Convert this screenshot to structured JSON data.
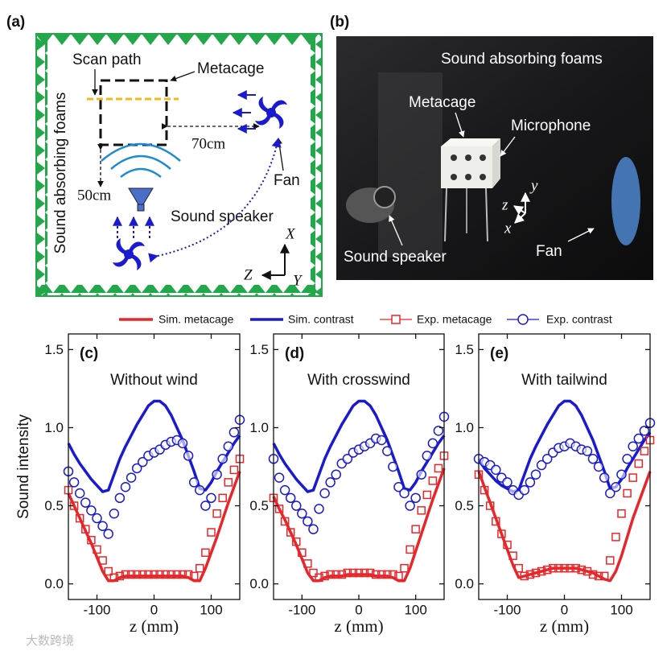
{
  "panel_a": {
    "label": "(a)",
    "scan_path": "Scan path",
    "metacage": "Metacage",
    "distance_horizontal": "70cm",
    "fan": "Fan",
    "distance_vertical": "50cm",
    "sound_speaker": "Sound speaker",
    "foams": "Sound absorbing foams",
    "axis_x": "X",
    "axis_z": "Z",
    "axis_y": "Y"
  },
  "panel_b": {
    "label": "(b)",
    "foams": "Sound absorbing foams",
    "metacage": "Metacage",
    "microphone": "Microphone",
    "axis_y": "y",
    "axis_z": "z",
    "axis_x": "x",
    "sound_speaker": "Sound speaker",
    "fan": "Fan"
  },
  "watermark": "大数跨境",
  "chart_data": [
    {
      "type": "line",
      "title": "(c)",
      "subtitle": "Without wind",
      "xlabel": "z (mm)",
      "ylabel": "Sound intensity",
      "x": [
        -150,
        -140,
        -130,
        -120,
        -110,
        -100,
        -90,
        -80,
        -70,
        -60,
        -50,
        -40,
        -30,
        -20,
        -10,
        0,
        10,
        20,
        30,
        40,
        50,
        60,
        70,
        80,
        90,
        100,
        110,
        120,
        130,
        140,
        150
      ],
      "series": [
        {
          "name": "Sim. metacage",
          "color": "#e8262a",
          "style": "line",
          "values": [
            0.58,
            0.5,
            0.42,
            0.34,
            0.26,
            0.17,
            0.08,
            0.02,
            0.02,
            0.04,
            0.05,
            0.05,
            0.05,
            0.05,
            0.05,
            0.05,
            0.05,
            0.05,
            0.05,
            0.05,
            0.05,
            0.04,
            0.02,
            0.02,
            0.1,
            0.2,
            0.3,
            0.41,
            0.52,
            0.62,
            0.72
          ]
        },
        {
          "name": "Sim. contrast",
          "color": "#1a1ad0",
          "style": "line",
          "values": [
            0.9,
            0.83,
            0.77,
            0.72,
            0.67,
            0.63,
            0.59,
            0.6,
            0.7,
            0.8,
            0.88,
            0.95,
            1.02,
            1.08,
            1.14,
            1.17,
            1.17,
            1.14,
            1.08,
            1.0,
            0.92,
            0.82,
            0.72,
            0.61,
            0.6,
            0.65,
            0.72,
            0.78,
            0.84,
            0.9,
            0.95
          ]
        },
        {
          "name": "Exp. metacage",
          "color": "#e8262a",
          "style": "square",
          "values": [
            0.6,
            0.5,
            0.42,
            0.35,
            0.28,
            0.22,
            0.15,
            0.08,
            0.04,
            0.05,
            0.06,
            0.06,
            0.06,
            0.06,
            0.06,
            0.06,
            0.06,
            0.06,
            0.06,
            0.06,
            0.06,
            0.06,
            0.05,
            0.1,
            0.2,
            0.33,
            0.45,
            0.55,
            0.65,
            0.73,
            0.8
          ]
        },
        {
          "name": "Exp. contrast",
          "color": "#1a1ad0",
          "style": "circle",
          "values": [
            0.72,
            0.65,
            0.58,
            0.52,
            0.47,
            0.42,
            0.37,
            0.32,
            0.45,
            0.55,
            0.62,
            0.68,
            0.74,
            0.78,
            0.82,
            0.84,
            0.86,
            0.89,
            0.91,
            0.92,
            0.9,
            0.82,
            0.65,
            0.6,
            0.5,
            0.55,
            0.7,
            0.8,
            0.88,
            0.97,
            1.05
          ]
        }
      ],
      "xlim": [
        -150,
        150
      ],
      "xticks": [
        -100,
        0,
        100
      ],
      "ylim": [
        -0.1,
        1.6
      ],
      "yticks": [
        {
          "value": 0,
          "label": "0.0"
        },
        0.5,
        {
          "value": 1,
          "label": "1.0"
        },
        1.5
      ]
    },
    {
      "type": "line",
      "title": "(d)",
      "subtitle": "With crosswind",
      "xlabel": "z (mm)",
      "x": [
        -150,
        -140,
        -130,
        -120,
        -110,
        -100,
        -90,
        -80,
        -70,
        -60,
        -50,
        -40,
        -30,
        -20,
        -10,
        0,
        10,
        20,
        30,
        40,
        50,
        60,
        70,
        80,
        90,
        100,
        110,
        120,
        130,
        140,
        150
      ],
      "series": [
        {
          "color": "#e8262a",
          "style": "line",
          "values": [
            0.56,
            0.48,
            0.41,
            0.33,
            0.25,
            0.16,
            0.07,
            0.02,
            0.02,
            0.04,
            0.05,
            0.05,
            0.05,
            0.06,
            0.06,
            0.06,
            0.06,
            0.06,
            0.05,
            0.05,
            0.05,
            0.04,
            0.02,
            0.02,
            0.1,
            0.21,
            0.32,
            0.43,
            0.54,
            0.64,
            0.74
          ]
        },
        {
          "color": "#1a1ad0",
          "style": "line",
          "values": [
            0.9,
            0.83,
            0.77,
            0.72,
            0.67,
            0.63,
            0.59,
            0.6,
            0.7,
            0.8,
            0.88,
            0.95,
            1.02,
            1.08,
            1.14,
            1.17,
            1.17,
            1.14,
            1.08,
            1.0,
            0.92,
            0.82,
            0.72,
            0.61,
            0.6,
            0.65,
            0.72,
            0.78,
            0.84,
            0.9,
            0.95
          ]
        },
        {
          "color": "#e8262a",
          "style": "square",
          "values": [
            0.55,
            0.48,
            0.4,
            0.33,
            0.27,
            0.2,
            0.13,
            0.07,
            0.04,
            0.05,
            0.06,
            0.06,
            0.06,
            0.07,
            0.07,
            0.07,
            0.07,
            0.07,
            0.06,
            0.06,
            0.06,
            0.06,
            0.05,
            0.1,
            0.22,
            0.35,
            0.47,
            0.57,
            0.66,
            0.74,
            0.82
          ]
        },
        {
          "color": "#1a1ad0",
          "style": "circle",
          "values": [
            0.8,
            0.68,
            0.6,
            0.55,
            0.5,
            0.45,
            0.4,
            0.35,
            0.48,
            0.58,
            0.65,
            0.7,
            0.77,
            0.8,
            0.84,
            0.86,
            0.88,
            0.9,
            0.93,
            0.92,
            0.85,
            0.75,
            0.62,
            0.58,
            0.5,
            0.55,
            0.7,
            0.82,
            0.9,
            0.98,
            1.07
          ]
        }
      ],
      "xlim": [
        -150,
        150
      ],
      "xticks": [
        -100,
        0,
        100
      ],
      "ylim": [
        -0.1,
        1.6
      ],
      "yticks": [
        {
          "value": 0,
          "label": "0.0"
        },
        0.5,
        {
          "value": 1,
          "label": "1.0"
        },
        1.5
      ]
    },
    {
      "type": "line",
      "title": "(e)",
      "subtitle": "With tailwind",
      "xlabel": "z (mm)",
      "x": [
        -150,
        -140,
        -130,
        -120,
        -110,
        -100,
        -90,
        -80,
        -70,
        -60,
        -50,
        -40,
        -30,
        -20,
        -10,
        0,
        10,
        20,
        30,
        40,
        50,
        60,
        70,
        80,
        90,
        100,
        110,
        120,
        130,
        140,
        150
      ],
      "series": [
        {
          "color": "#e8262a",
          "style": "line",
          "values": [
            0.72,
            0.62,
            0.52,
            0.42,
            0.32,
            0.22,
            0.12,
            0.04,
            0.05,
            0.06,
            0.07,
            0.08,
            0.09,
            0.1,
            0.1,
            0.1,
            0.1,
            0.1,
            0.09,
            0.08,
            0.07,
            0.05,
            0.03,
            0.02,
            0.08,
            0.18,
            0.3,
            0.42,
            0.52,
            0.62,
            0.72
          ]
        },
        {
          "color": "#1a1ad0",
          "style": "line",
          "values": [
            0.8,
            0.74,
            0.7,
            0.66,
            0.63,
            0.61,
            0.59,
            0.6,
            0.7,
            0.8,
            0.88,
            0.95,
            1.02,
            1.08,
            1.14,
            1.17,
            1.17,
            1.14,
            1.08,
            1.0,
            0.92,
            0.82,
            0.72,
            0.61,
            0.62,
            0.67,
            0.74,
            0.8,
            0.86,
            0.92,
            0.97
          ]
        },
        {
          "color": "#e8262a",
          "style": "square",
          "values": [
            0.7,
            0.6,
            0.5,
            0.4,
            0.32,
            0.25,
            0.18,
            0.1,
            0.05,
            0.06,
            0.07,
            0.08,
            0.09,
            0.1,
            0.1,
            0.1,
            0.1,
            0.1,
            0.09,
            0.08,
            0.06,
            0.05,
            0.05,
            0.15,
            0.3,
            0.45,
            0.58,
            0.68,
            0.77,
            0.85,
            0.92
          ]
        },
        {
          "color": "#1a1ad0",
          "style": "circle",
          "values": [
            0.8,
            0.78,
            0.76,
            0.73,
            0.68,
            0.65,
            0.6,
            0.57,
            0.6,
            0.65,
            0.7,
            0.76,
            0.8,
            0.84,
            0.87,
            0.88,
            0.9,
            0.88,
            0.86,
            0.85,
            0.8,
            0.75,
            0.68,
            0.58,
            0.62,
            0.7,
            0.8,
            0.88,
            0.93,
            0.98,
            1.03
          ]
        }
      ],
      "xlim": [
        -150,
        150
      ],
      "xticks": [
        -100,
        0,
        100
      ],
      "ylim": [
        -0.1,
        1.6
      ],
      "yticks": [
        {
          "value": 0,
          "label": "0.0"
        },
        0.5,
        {
          "value": 1,
          "label": "1.0"
        },
        1.5
      ]
    }
  ]
}
